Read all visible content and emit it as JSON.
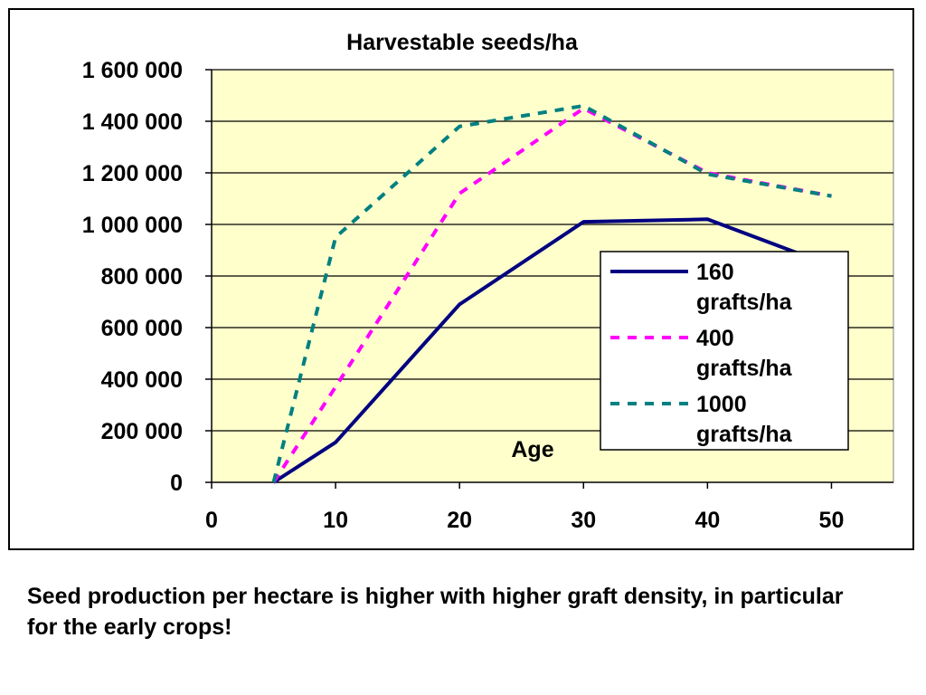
{
  "chart_data": {
    "type": "line",
    "title": "Harvestable seeds/ha",
    "xlabel": "Age",
    "ylabel": "",
    "xlim": [
      0,
      55
    ],
    "ylim": [
      0,
      1600000
    ],
    "x_ticks": [
      0,
      10,
      20,
      30,
      40,
      50
    ],
    "y_ticks": [
      0,
      200000,
      400000,
      600000,
      800000,
      1000000,
      1200000,
      1400000,
      1600000
    ],
    "x_tick_labels": [
      "0",
      "10",
      "20",
      "30",
      "40",
      "50"
    ],
    "y_tick_labels": [
      "0",
      "200 000",
      "400 000",
      "600 000",
      "800 000",
      "1 000 000",
      "1 200 000",
      "1 400 000",
      "1 600 000"
    ],
    "grid": "horizontal",
    "plot_background": "#FFFFCC",
    "legend_position": "right",
    "series": [
      {
        "name": "160 grafts/ha",
        "color": "#000080",
        "style": "solid",
        "x": [
          5,
          10,
          20,
          30,
          40,
          50
        ],
        "y": [
          0,
          155000,
          690000,
          1010000,
          1020000,
          840000
        ]
      },
      {
        "name": "400 grafts/ha",
        "color": "#FF00FF",
        "style": "dashed",
        "x": [
          5,
          10,
          20,
          30,
          40,
          50
        ],
        "y": [
          0,
          370000,
          1120000,
          1450000,
          1200000,
          1110000
        ]
      },
      {
        "name": "1000 grafts/ha",
        "color": "#008080",
        "style": "dashed",
        "x": [
          5,
          10,
          20,
          30,
          40,
          50
        ],
        "y": [
          0,
          950000,
          1380000,
          1460000,
          1195000,
          1110000
        ]
      }
    ]
  },
  "caption": "Seed production per hectare is higher with higher graft density, in particular for the early crops!"
}
